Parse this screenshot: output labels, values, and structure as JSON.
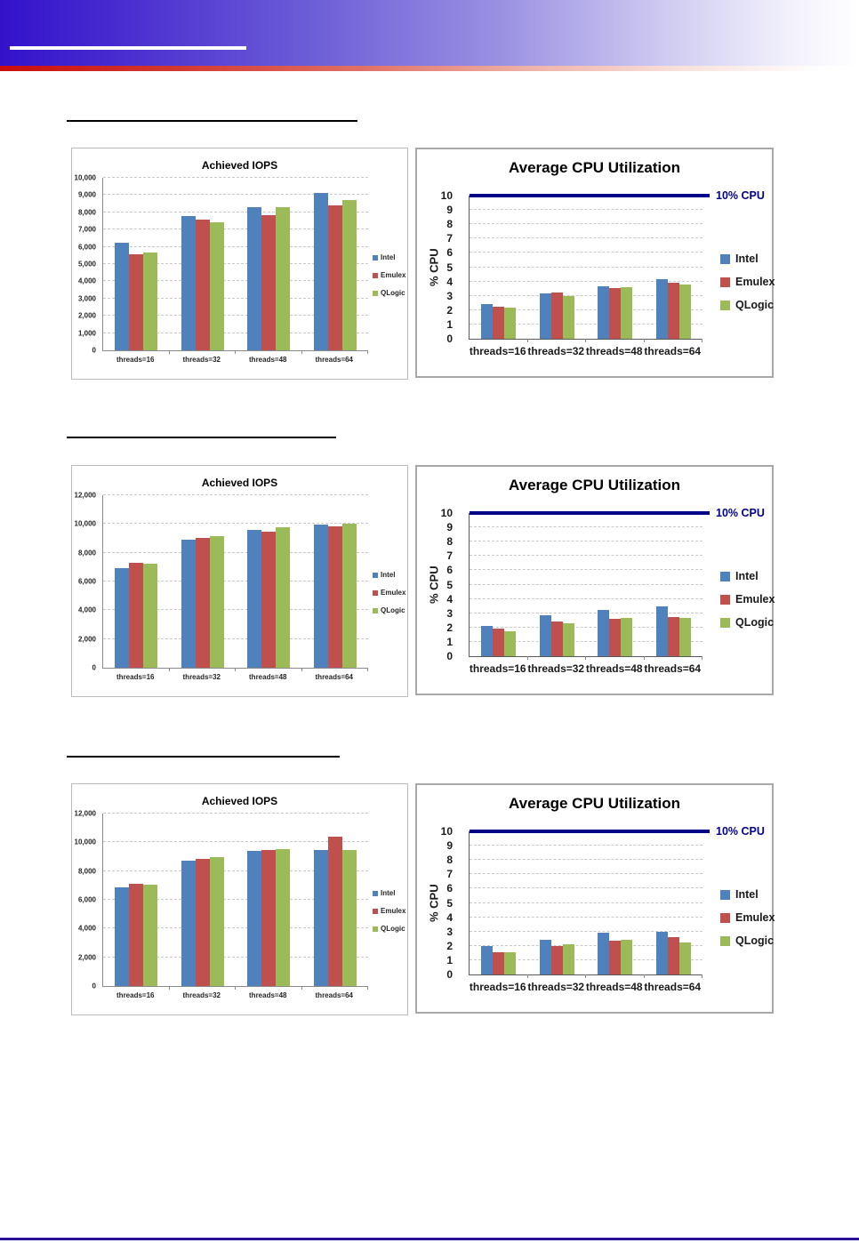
{
  "page": {
    "background": "#ffffff"
  },
  "header": {
    "banner_gradient_left": "#3312cb",
    "stripe_gradient_left": "#c90d0d",
    "underline_color": "#ffffff"
  },
  "footer": {
    "line_color": "#2d0f9b"
  },
  "series_colors": {
    "Intel": "#4F81BD",
    "Emulex": "#C0504D",
    "QLogic": "#9BBB59"
  },
  "reference_line_color": "#00008B",
  "chart_data": [
    {
      "id": "row1-iops",
      "type": "bar",
      "title": "Achieved IOPS",
      "categories": [
        "threads=16",
        "threads=32",
        "threads=48",
        "threads=64"
      ],
      "series": [
        {
          "name": "Intel",
          "values": [
            6250,
            7800,
            8300,
            9150
          ]
        },
        {
          "name": "Emulex",
          "values": [
            5550,
            7600,
            7850,
            8400
          ]
        },
        {
          "name": "QLogic",
          "values": [
            5650,
            7400,
            8300,
            8700
          ]
        }
      ],
      "ylim": [
        0,
        10000
      ],
      "ytick_step": 1000,
      "number_format": "comma",
      "grid": true,
      "legend_position": "right"
    },
    {
      "id": "row1-cpu",
      "type": "bar",
      "title": "Average CPU Utilization",
      "ylabel": "% CPU",
      "categories": [
        "threads=16",
        "threads=32",
        "threads=48",
        "threads=64"
      ],
      "series": [
        {
          "name": "Intel",
          "values": [
            2.45,
            3.15,
            3.65,
            4.15
          ]
        },
        {
          "name": "Emulex",
          "values": [
            2.25,
            3.25,
            3.55,
            3.9
          ]
        },
        {
          "name": "QLogic",
          "values": [
            2.2,
            3.0,
            3.6,
            3.8
          ]
        }
      ],
      "ylim": [
        0,
        10
      ],
      "ytick_step": 1,
      "grid": true,
      "legend_position": "right",
      "ref_line": {
        "value": 10,
        "label": "10% CPU",
        "color": "#00008B"
      }
    },
    {
      "id": "row2-iops",
      "type": "bar",
      "title": "Achieved IOPS",
      "categories": [
        "threads=16",
        "threads=32",
        "threads=48",
        "threads=64"
      ],
      "series": [
        {
          "name": "Intel",
          "values": [
            6950,
            8900,
            9600,
            9950
          ]
        },
        {
          "name": "Emulex",
          "values": [
            7300,
            9050,
            9450,
            9850
          ]
        },
        {
          "name": "QLogic",
          "values": [
            7250,
            9150,
            9750,
            10050
          ]
        }
      ],
      "ylim": [
        0,
        12000
      ],
      "ytick_step": 2000,
      "number_format": "comma",
      "grid": true,
      "legend_position": "right"
    },
    {
      "id": "row2-cpu",
      "type": "bar",
      "title": "Average CPU Utilization",
      "ylabel": "% CPU",
      "categories": [
        "threads=16",
        "threads=32",
        "threads=48",
        "threads=64"
      ],
      "series": [
        {
          "name": "Intel",
          "values": [
            2.1,
            2.85,
            3.25,
            3.5
          ]
        },
        {
          "name": "Emulex",
          "values": [
            1.9,
            2.4,
            2.6,
            2.75
          ]
        },
        {
          "name": "QLogic",
          "values": [
            1.75,
            2.3,
            2.7,
            2.7
          ]
        }
      ],
      "ylim": [
        0,
        10
      ],
      "ytick_step": 1,
      "grid": true,
      "legend_position": "right",
      "ref_line": {
        "value": 10,
        "label": "10% CPU",
        "color": "#00008B"
      }
    },
    {
      "id": "row3-iops",
      "type": "bar",
      "title": "Achieved IOPS",
      "categories": [
        "threads=16",
        "threads=32",
        "threads=48",
        "threads=64"
      ],
      "series": [
        {
          "name": "Intel",
          "values": [
            6850,
            8750,
            9400,
            9450
          ]
        },
        {
          "name": "Emulex",
          "values": [
            7100,
            8850,
            9450,
            10400
          ]
        },
        {
          "name": "QLogic",
          "values": [
            7050,
            8950,
            9550,
            9450
          ]
        }
      ],
      "ylim": [
        0,
        12000
      ],
      "ytick_step": 2000,
      "number_format": "comma",
      "grid": true,
      "legend_position": "right"
    },
    {
      "id": "row3-cpu",
      "type": "bar",
      "title": "Average CPU Utilization",
      "ylabel": "% CPU",
      "categories": [
        "threads=16",
        "threads=32",
        "threads=48",
        "threads=64"
      ],
      "series": [
        {
          "name": "Intel",
          "values": [
            2.0,
            2.45,
            2.9,
            3.0
          ]
        },
        {
          "name": "Emulex",
          "values": [
            1.55,
            2.0,
            2.35,
            2.6
          ]
        },
        {
          "name": "QLogic",
          "values": [
            1.55,
            2.1,
            2.45,
            2.25
          ]
        }
      ],
      "ylim": [
        0,
        10
      ],
      "ytick_step": 1,
      "grid": true,
      "legend_position": "right",
      "ref_line": {
        "value": 10,
        "label": "10% CPU",
        "color": "#00008B"
      }
    }
  ]
}
